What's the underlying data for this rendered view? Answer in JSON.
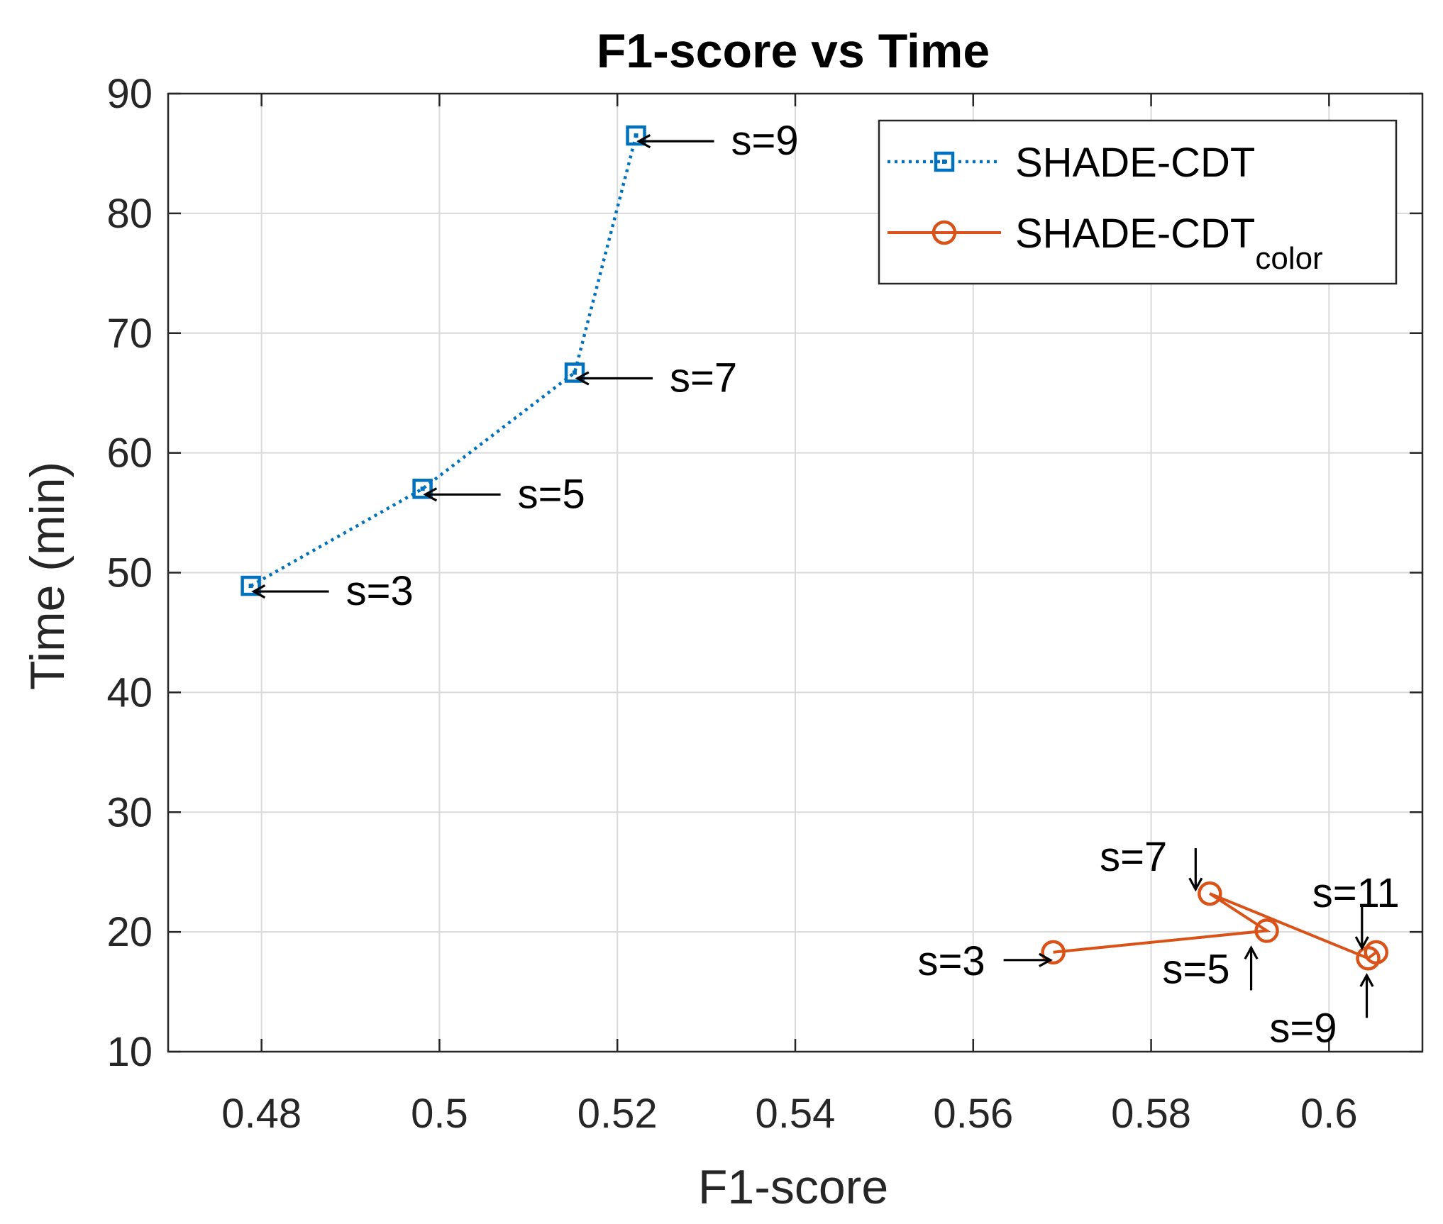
{
  "chart_data": {
    "type": "line",
    "title": "F1-score vs Time",
    "xlabel": "F1-score",
    "ylabel": "Time (min)",
    "xlim": [
      0.4695,
      0.6105
    ],
    "ylim": [
      10,
      90
    ],
    "xticks": [
      0.48,
      0.5,
      0.52,
      0.54,
      0.56,
      0.58,
      0.6
    ],
    "xtick_labels": [
      "0.48",
      "0.5",
      "0.52",
      "0.54",
      "0.56",
      "0.58",
      "0.6"
    ],
    "yticks": [
      10,
      20,
      30,
      40,
      50,
      60,
      70,
      80,
      90
    ],
    "ytick_labels": [
      "10",
      "20",
      "30",
      "40",
      "50",
      "60",
      "70",
      "80",
      "90"
    ],
    "grid": true,
    "legend_position": "top-right",
    "series": [
      {
        "name": "SHADE-CDT",
        "legend_label": "SHADE-CDT",
        "legend_subscript": "",
        "color": "#0072BD",
        "line_style": "dotted",
        "marker": "square",
        "points": [
          {
            "x": 0.4788,
            "y": 48.9,
            "label": "s=3"
          },
          {
            "x": 0.4981,
            "y": 57.0,
            "label": "s=5"
          },
          {
            "x": 0.5152,
            "y": 66.7,
            "label": "s=7"
          },
          {
            "x": 0.5221,
            "y": 86.5,
            "label": "s=9"
          }
        ]
      },
      {
        "name": "SHADE-CDTcolor",
        "legend_label": "SHADE-CDT",
        "legend_subscript": "color",
        "color": "#D95319",
        "line_style": "solid",
        "marker": "circle",
        "points": [
          {
            "x": 0.569,
            "y": 18.3,
            "label": "s=3"
          },
          {
            "x": 0.593,
            "y": 20.1,
            "label": "s=5"
          },
          {
            "x": 0.5866,
            "y": 23.2,
            "label": "s=7"
          },
          {
            "x": 0.6044,
            "y": 17.8,
            "label": "s=9"
          },
          {
            "x": 0.6053,
            "y": 18.3,
            "label": "s=11"
          }
        ]
      }
    ]
  }
}
